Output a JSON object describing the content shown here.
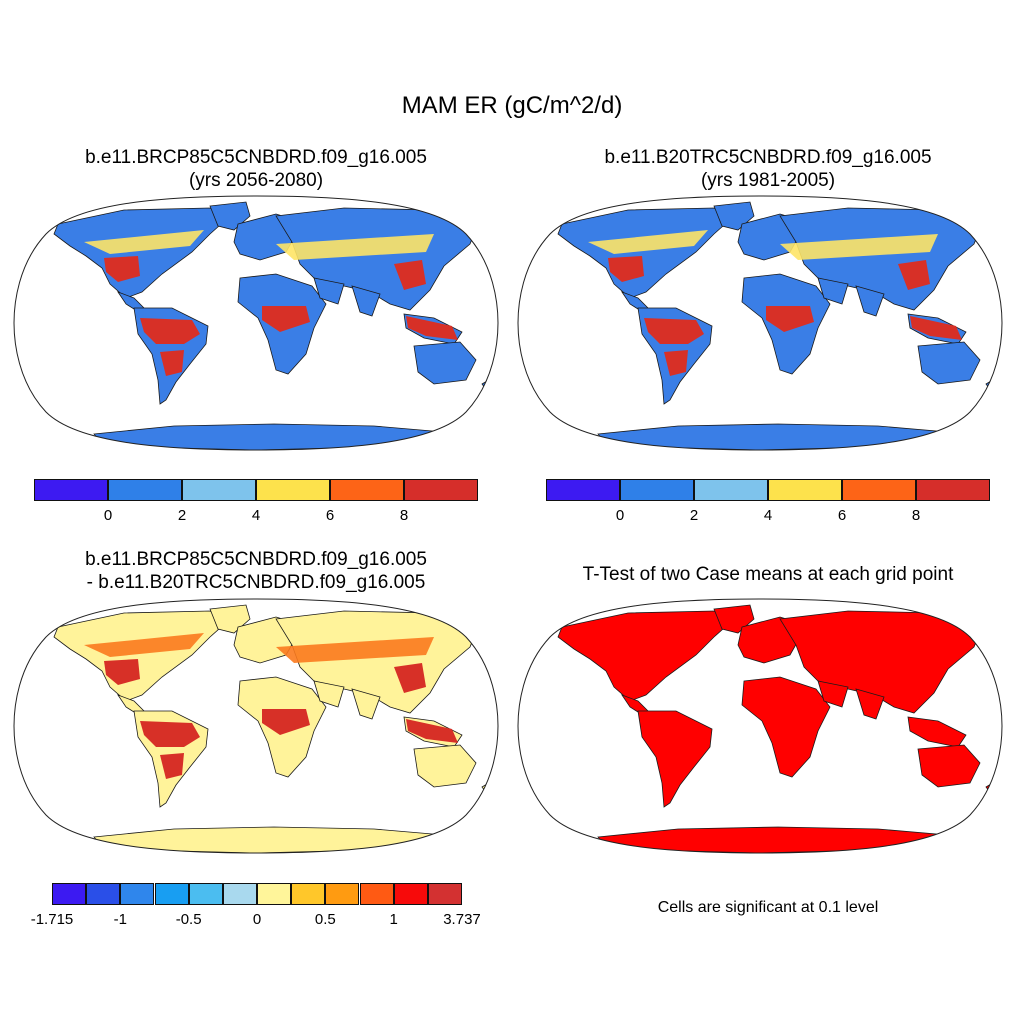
{
  "main_title": "MAM ER (gC/m^2/d)",
  "panels": [
    {
      "title_line1": "b.e11.BRCP85C5CNBDRD.f09_g16.005",
      "title_line2": "(yrs 2056-2080)",
      "tropics_color": "#d73027",
      "land_color": "#3a7ee6",
      "boreal_color": "#fee466",
      "ocean_color": "#ffffff"
    },
    {
      "title_line1": "b.e11.B20TRC5CNBDRD.f09_g16.005",
      "title_line2": "(yrs 1981-2005)",
      "tropics_color": "#d73027",
      "land_color": "#3a7ee6",
      "boreal_color": "#fee466",
      "ocean_color": "#ffffff"
    },
    {
      "title_line1": "b.e11.BRCP85C5CNBDRD.f09_g16.005",
      "title_line2": "- b.e11.B20TRC5CNBDRD.f09_g16.005",
      "tropics_color": "#d73027",
      "land_color": "#fff39a",
      "boreal_color": "#fb7a1e",
      "ocean_color": "#ffffff"
    },
    {
      "title_line1": "T-Test of two Case means at each grid point",
      "title_line2": "",
      "land_color": "#ff0000",
      "ocean_color": "#ffffff",
      "note": "Cells are significant at 0.1 level"
    }
  ],
  "colorbar_abs": {
    "colors": [
      "#3d1af2",
      "#2f80e8",
      "#7ec3ec",
      "#fde24c",
      "#fd6417",
      "#d62e2a"
    ],
    "labels": [
      "0",
      "2",
      "4",
      "6",
      "8"
    ]
  },
  "colorbar_diff": {
    "colors": [
      "#3c1af2",
      "#2a4fe8",
      "#2f86ec",
      "#189ef2",
      "#4bbdf0",
      "#a9d9ee",
      "#fff59a",
      "#ffc72a",
      "#ff9b11",
      "#ff5a13",
      "#f70a0a",
      "#d33131"
    ],
    "labels": [
      "-1.715",
      "-1",
      "-0.5",
      "0",
      "0.5",
      "1",
      "3.737"
    ]
  }
}
